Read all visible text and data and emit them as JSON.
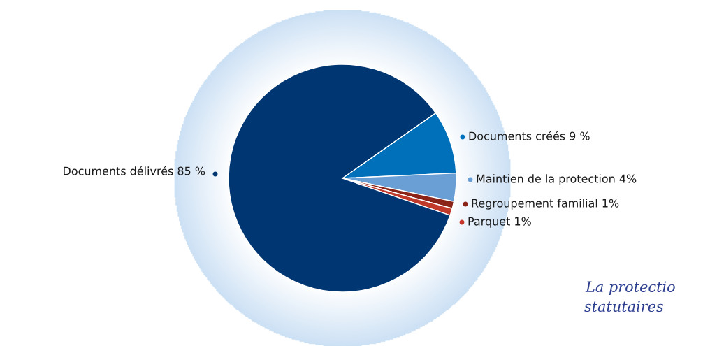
{
  "chart_data": {
    "type": "pie",
    "categories": [
      "Documents créés",
      "Maintien de la protection",
      "Regroupement familial",
      "Parquet",
      "Documents délivrés"
    ],
    "values": [
      9,
      4,
      1,
      1,
      85
    ],
    "value_labels": [
      "9 %",
      "4%",
      "1%",
      "1%",
      "85 %"
    ],
    "colors": [
      "#0070bb",
      "#6a9fd6",
      "#8b2318",
      "#c0392b",
      "#003672"
    ],
    "legend": "right",
    "annotations": [
      "La protectio",
      "statutaires"
    ]
  }
}
